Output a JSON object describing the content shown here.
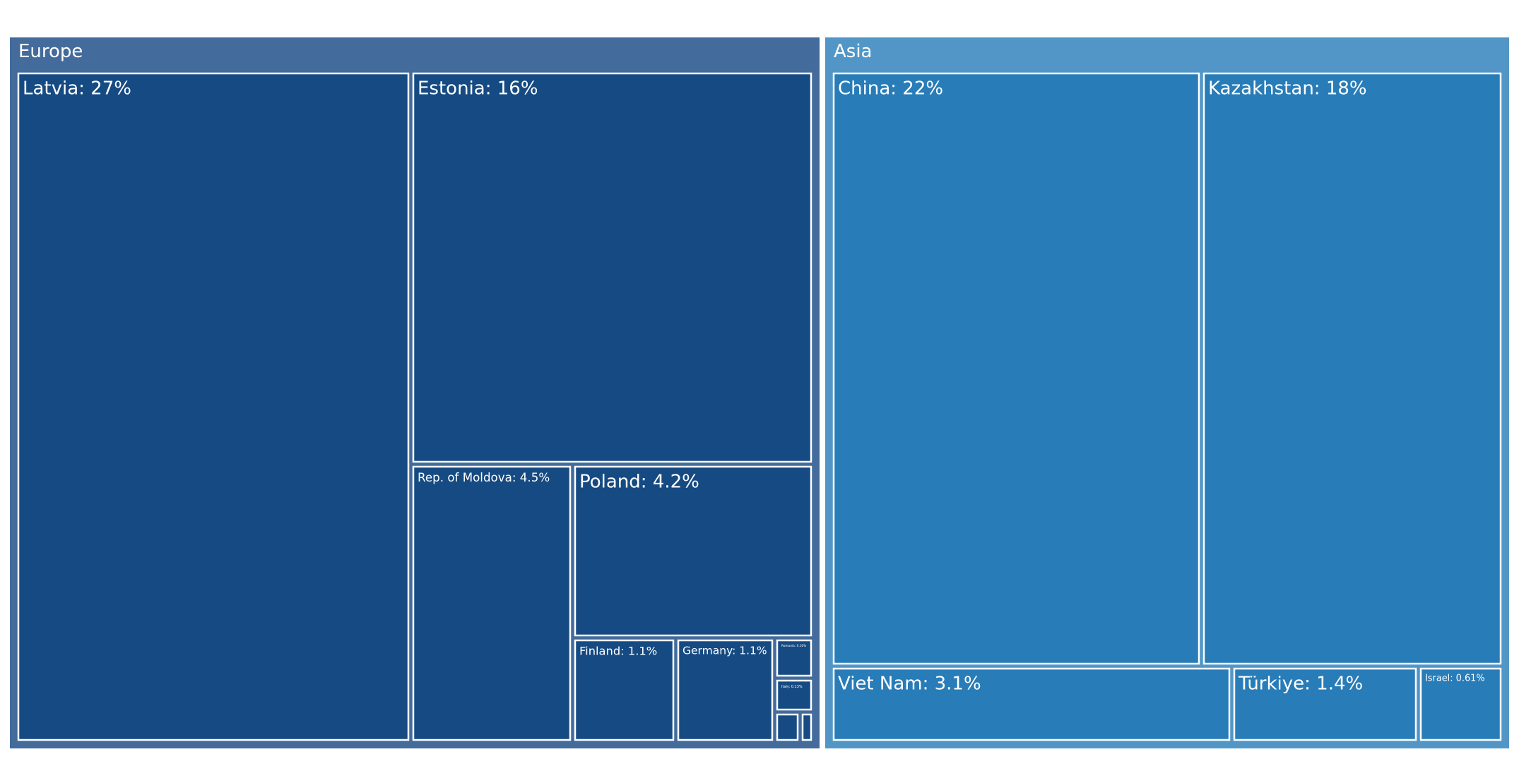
{
  "chart_data": {
    "type": "treemap",
    "title": "",
    "groups": [
      {
        "name": "Europe",
        "color": "#436b9b",
        "leaf_color": "#164a82",
        "children": [
          {
            "name": "Latvia",
            "label": "Latvia: 27%",
            "value": 27
          },
          {
            "name": "Estonia",
            "label": "Estonia: 16%",
            "value": 16
          },
          {
            "name": "Rep. of Moldova",
            "label": "Rep. of Moldova: 4.5%",
            "value": 4.5
          },
          {
            "name": "Poland",
            "label": "Poland: 4.2%",
            "value": 4.2
          },
          {
            "name": "Finland",
            "label": "Finland: 1.1%",
            "value": 1.1
          },
          {
            "name": "Germany",
            "label": "Germany: 1.1%",
            "value": 1.1
          },
          {
            "name": "Romania",
            "label": "Romania: 0.16%",
            "value": 0.16
          },
          {
            "name": "Italy",
            "label": "Italy: 0.13%",
            "value": 0.13
          },
          {
            "name": "Unlabeled 1",
            "label": "",
            "value": 0.05
          },
          {
            "name": "Unlabeled 2",
            "label": "",
            "value": 0.02
          }
        ]
      },
      {
        "name": "Asia",
        "color": "#5196c6",
        "leaf_color": "#287cb8",
        "children": [
          {
            "name": "China",
            "label": "China: 22%",
            "value": 22
          },
          {
            "name": "Kazakhstan",
            "label": "Kazakhstan: 18%",
            "value": 18
          },
          {
            "name": "Viet Nam",
            "label": "Viet Nam: 3.1%",
            "value": 3.1
          },
          {
            "name": "Türkiye",
            "label": "Türkiye: 1.4%",
            "value": 1.4
          },
          {
            "name": "Israel",
            "label": "Israel: 0.61%",
            "value": 0.61
          }
        ]
      }
    ]
  }
}
